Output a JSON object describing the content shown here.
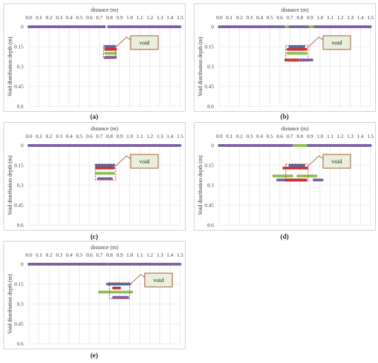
{
  "chart_data": [
    {
      "type": "line",
      "panel_label": "(a)",
      "xlabel": "distance (m)",
      "ylabel": "Void distribution depth (m)",
      "x_ticks": [
        "0.0",
        "0.1",
        "0.2",
        "0.3",
        "0.4",
        "0.5",
        "0.6",
        "0.7",
        "0.8",
        "0.9",
        "1.0",
        "1.1",
        "1.2",
        "1.3",
        "1.4",
        "1.5"
      ],
      "y_ticks": [
        "0",
        "0.15",
        "0.3",
        "0.45",
        "0.6"
      ],
      "xlim": [
        0,
        1.5
      ],
      "ylim": [
        0,
        0.6
      ],
      "annotation": "void",
      "void_box": {
        "x0": 0.74,
        "x1": 0.86,
        "y0": 0.14,
        "y1": 0.24
      },
      "series": [
        {
          "color": "#7b5ea7",
          "segments": [
            [
              0.0,
              0.75,
              0.0
            ],
            [
              0.79,
              1.5,
              0.0
            ]
          ]
        },
        {
          "color": "#4a6fa5",
          "segments": [
            [
              0.76,
              0.85,
              0.15
            ]
          ]
        },
        {
          "color": "#cc3333",
          "segments": [
            [
              0.76,
              0.86,
              0.17
            ]
          ]
        },
        {
          "color": "#8cbf4f",
          "segments": [
            [
              0.76,
              0.86,
              0.2
            ]
          ]
        },
        {
          "color": "#7b5ea7",
          "segments": [
            [
              0.76,
              0.86,
              0.23
            ]
          ]
        }
      ]
    },
    {
      "type": "line",
      "panel_label": "(b)",
      "xlabel": "distance (m)",
      "ylabel": "Void distribution depth (m)",
      "x_ticks": [
        "0.0",
        "0.1",
        "0.2",
        "0.3",
        "0.4",
        "0.5",
        "0.6",
        "0.7",
        "0.8",
        "0.9",
        "1.0",
        "1.1",
        "1.2",
        "1.3",
        "1.4",
        "1.5"
      ],
      "y_ticks": [
        "0",
        "0.15",
        "0.3",
        "0.45",
        "0.6"
      ],
      "xlim": [
        0,
        1.5
      ],
      "ylim": [
        0,
        0.6
      ],
      "annotation": "void",
      "void_box": {
        "x0": 0.66,
        "x1": 0.88,
        "y0": 0.14,
        "y1": 0.26
      },
      "series": [
        {
          "color": "#7b5ea7",
          "segments": [
            [
              0.0,
              0.66,
              0.0
            ],
            [
              0.68,
              0.9,
              0.0
            ],
            [
              0.93,
              1.5,
              0.0
            ]
          ]
        },
        {
          "color": "#8cbf4f",
          "segments": [
            [
              0.66,
              0.68,
              0.0
            ],
            [
              0.9,
              0.93,
              0.0
            ]
          ]
        },
        {
          "color": "#4a6fa5",
          "segments": [
            [
              0.7,
              0.84,
              0.15
            ]
          ]
        },
        {
          "color": "#cc3333",
          "segments": [
            [
              0.68,
              0.86,
              0.17
            ]
          ]
        },
        {
          "color": "#8cbf4f",
          "segments": [
            [
              0.68,
              0.86,
              0.2
            ]
          ]
        },
        {
          "color": "#cc3333",
          "segments": [
            [
              0.66,
              0.78,
              0.25
            ]
          ]
        },
        {
          "color": "#7b5ea7",
          "segments": [
            [
              0.8,
              0.92,
              0.25
            ]
          ]
        }
      ]
    },
    {
      "type": "line",
      "panel_label": "(c)",
      "xlabel": "distance (m)",
      "ylabel": "Void distribution depth (m)",
      "x_ticks": [
        "0.0",
        "0.1",
        "0.2",
        "0.3",
        "0.4",
        "0.5",
        "0.6",
        "0.7",
        "0.8",
        "0.9",
        "1.0",
        "1.1",
        "1.2",
        "1.3",
        "1.4",
        "1.5"
      ],
      "y_ticks": [
        "0",
        "0.15",
        "0.3",
        "0.45",
        "0.6"
      ],
      "xlim": [
        0,
        1.5
      ],
      "ylim": [
        0,
        0.6
      ],
      "annotation": "void",
      "void_box": {
        "x0": 0.66,
        "x1": 0.86,
        "y0": 0.14,
        "y1": 0.26
      },
      "series": [
        {
          "color": "#7b5ea7",
          "segments": [
            [
              0.0,
              1.5,
              0.0
            ]
          ]
        },
        {
          "color": "#4a6fa5",
          "segments": [
            [
              0.67,
              0.84,
              0.15
            ]
          ]
        },
        {
          "color": "#cc3333",
          "segments": [
            [
              0.67,
              0.84,
              0.17
            ]
          ]
        },
        {
          "color": "#8cbf4f",
          "segments": [
            [
              0.67,
              0.84,
              0.21
            ]
          ]
        },
        {
          "color": "#7b5ea7",
          "segments": [
            [
              0.69,
              0.82,
              0.25
            ]
          ]
        }
      ]
    },
    {
      "type": "line",
      "panel_label": "(d)",
      "xlabel": "distance (m)",
      "ylabel": "Void distribution depth (m)",
      "x_ticks": [
        "0.0",
        "0.1",
        "0.2",
        "0.3",
        "0.4",
        "0.5",
        "0.6",
        "0.7",
        "0.8",
        "0.9",
        "1.0",
        "1.1",
        "1.2",
        "1.3",
        "1.4",
        "1.5"
      ],
      "y_ticks": [
        "0",
        "0.15",
        "0.3",
        "0.45",
        "0.6"
      ],
      "xlim": [
        0,
        1.5
      ],
      "ylim": [
        0,
        0.6
      ],
      "annotation": "void",
      "void_box": {
        "x0": 0.66,
        "x1": 0.88,
        "y0": 0.14,
        "y1": 0.27
      },
      "series": [
        {
          "color": "#7b5ea7",
          "segments": [
            [
              0.0,
              0.74,
              0.0
            ],
            [
              0.86,
              1.5,
              0.0
            ]
          ]
        },
        {
          "color": "#8cbf4f",
          "segments": [
            [
              0.74,
              0.86,
              0.0
            ]
          ]
        },
        {
          "color": "#4a6fa5",
          "segments": [
            [
              0.7,
              0.84,
              0.15
            ]
          ]
        },
        {
          "color": "#cc3333",
          "segments": [
            [
              0.64,
              0.87,
              0.17
            ]
          ]
        },
        {
          "color": "#8cbf4f",
          "segments": [
            [
              0.54,
              0.72,
              0.23
            ],
            [
              0.78,
              0.96,
              0.23
            ]
          ]
        },
        {
          "color": "#7b5ea7",
          "segments": [
            [
              0.58,
              0.66,
              0.26
            ],
            [
              0.94,
              1.02,
              0.26
            ]
          ]
        },
        {
          "color": "#cc3333",
          "segments": [
            [
              0.66,
              0.86,
              0.26
            ]
          ]
        }
      ]
    },
    {
      "type": "line",
      "panel_label": "(e)",
      "xlabel": "distance (m)",
      "ylabel": "Void distribution depth (m)",
      "x_ticks": [
        "0.0",
        "0.1",
        "0.2",
        "0.3",
        "0.4",
        "0.5",
        "0.6",
        "0.7",
        "0.8",
        "0.9",
        "1.0",
        "1.1",
        "1.2",
        "1.3",
        "1.4",
        "1.5"
      ],
      "y_ticks": [
        "0",
        "0.15",
        "0.3",
        "0.45",
        "0.6"
      ],
      "xlim": [
        0,
        1.5
      ],
      "ylim": [
        0,
        0.6
      ],
      "annotation": "void",
      "void_box": {
        "x0": 0.8,
        "x1": 1.0,
        "y0": 0.14,
        "y1": 0.26
      },
      "series": [
        {
          "color": "#7b5ea7",
          "segments": [
            [
              0.0,
              0.78,
              0.0
            ],
            [
              0.8,
              1.5,
              0.0
            ]
          ]
        },
        {
          "color": "#4a6fa5",
          "segments": [
            [
              0.78,
              1.0,
              0.15
            ]
          ]
        },
        {
          "color": "#cc3333",
          "segments": [
            [
              0.84,
              0.9,
              0.18
            ]
          ]
        },
        {
          "color": "#8cbf4f",
          "segments": [
            [
              0.7,
              1.02,
              0.21
            ]
          ]
        },
        {
          "color": "#7b5ea7",
          "segments": [
            [
              0.84,
              0.98,
              0.25
            ]
          ]
        }
      ]
    }
  ]
}
